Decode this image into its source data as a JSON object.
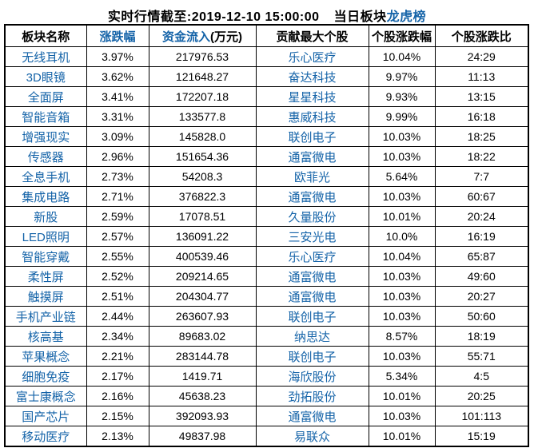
{
  "title": {
    "timestamp": "实时行情截至:2019-12-10 15:00:00",
    "board_prefix": "当日板块",
    "link_label": "龙虎榜"
  },
  "colors": {
    "link_blue": "#1463A8",
    "text_black": "#000000",
    "border_black": "#000000",
    "background": "#FFFFFF"
  },
  "table": {
    "header": {
      "col1": "板块名称",
      "col2": "涨跌幅",
      "col3_link": "资金流入",
      "col3_suffix": "(万元)",
      "col4": "贡献最大个股",
      "col5": "个股涨跌幅",
      "col6": "个股涨跌比"
    },
    "rows": [
      {
        "sector": "无线耳机",
        "change": "3.97%",
        "inflow": "217976.53",
        "stock": "乐心医疗",
        "stock_change": "10.04%",
        "ratio": "24:29"
      },
      {
        "sector": "3D眼镜",
        "change": "3.62%",
        "inflow": "121648.27",
        "stock": "奋达科技",
        "stock_change": "9.97%",
        "ratio": "11:13"
      },
      {
        "sector": "全面屏",
        "change": "3.41%",
        "inflow": "172207.18",
        "stock": "星星科技",
        "stock_change": "9.93%",
        "ratio": "13:15"
      },
      {
        "sector": "智能音箱",
        "change": "3.31%",
        "inflow": "133577.8",
        "stock": "惠威科技",
        "stock_change": "9.99%",
        "ratio": "16:18"
      },
      {
        "sector": "增强现实",
        "change": "3.09%",
        "inflow": "145828.0",
        "stock": "联创电子",
        "stock_change": "10.03%",
        "ratio": "18:25"
      },
      {
        "sector": "传感器",
        "change": "2.96%",
        "inflow": "151654.36",
        "stock": "通富微电",
        "stock_change": "10.03%",
        "ratio": "18:22"
      },
      {
        "sector": "全息手机",
        "change": "2.73%",
        "inflow": "54208.3",
        "stock": "欧菲光",
        "stock_change": "5.64%",
        "ratio": "7:7"
      },
      {
        "sector": "集成电路",
        "change": "2.71%",
        "inflow": "376822.3",
        "stock": "通富微电",
        "stock_change": "10.03%",
        "ratio": "60:67"
      },
      {
        "sector": "新股",
        "change": "2.59%",
        "inflow": "17078.51",
        "stock": "久量股份",
        "stock_change": "10.01%",
        "ratio": "20:24"
      },
      {
        "sector": "LED照明",
        "change": "2.57%",
        "inflow": "136091.22",
        "stock": "三安光电",
        "stock_change": "10.0%",
        "ratio": "16:19"
      },
      {
        "sector": "智能穿戴",
        "change": "2.55%",
        "inflow": "400539.46",
        "stock": "乐心医疗",
        "stock_change": "10.04%",
        "ratio": "65:87"
      },
      {
        "sector": "柔性屏",
        "change": "2.52%",
        "inflow": "209214.65",
        "stock": "通富微电",
        "stock_change": "10.03%",
        "ratio": "49:60"
      },
      {
        "sector": "触摸屏",
        "change": "2.51%",
        "inflow": "204304.77",
        "stock": "通富微电",
        "stock_change": "10.03%",
        "ratio": "20:27"
      },
      {
        "sector": "手机产业链",
        "change": "2.44%",
        "inflow": "263607.93",
        "stock": "联创电子",
        "stock_change": "10.03%",
        "ratio": "50:60"
      },
      {
        "sector": "核高基",
        "change": "2.34%",
        "inflow": "89683.02",
        "stock": "纳思达",
        "stock_change": "8.57%",
        "ratio": "18:19"
      },
      {
        "sector": "苹果概念",
        "change": "2.21%",
        "inflow": "283144.78",
        "stock": "联创电子",
        "stock_change": "10.03%",
        "ratio": "55:71"
      },
      {
        "sector": "细胞免疫",
        "change": "2.17%",
        "inflow": "1419.71",
        "stock": "海欣股份",
        "stock_change": "5.34%",
        "ratio": "4:5"
      },
      {
        "sector": "富士康概念",
        "change": "2.16%",
        "inflow": "45638.23",
        "stock": "劲拓股份",
        "stock_change": "10.01%",
        "ratio": "20:25"
      },
      {
        "sector": "国产芯片",
        "change": "2.15%",
        "inflow": "392093.93",
        "stock": "通富微电",
        "stock_change": "10.03%",
        "ratio": "101:113"
      },
      {
        "sector": "移动医疗",
        "change": "2.13%",
        "inflow": "49837.98",
        "stock": "易联众",
        "stock_change": "10.01%",
        "ratio": "15:19"
      }
    ]
  }
}
